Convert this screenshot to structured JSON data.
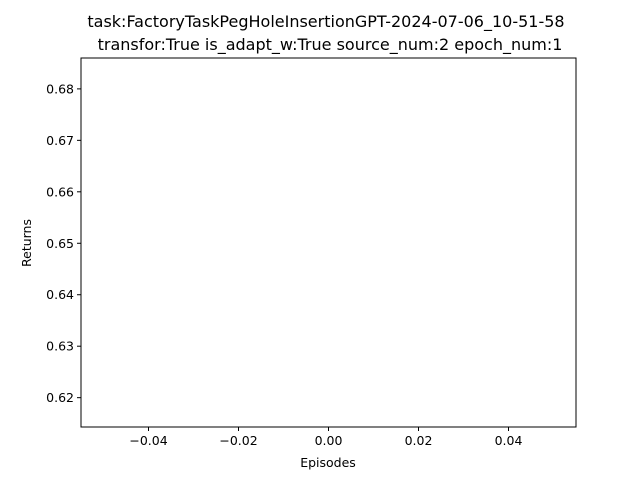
{
  "chart_data": {
    "type": "line",
    "title": "task:FactoryTaskPegHoleInsertionGPT-2024-07-06_10-51-58",
    "subtitle": "transfor:True  is_adapt_w:True   source_num:2   epoch_num:1",
    "xlabel": "Episodes",
    "ylabel": "Returns",
    "xlim": [
      -0.055,
      0.055
    ],
    "ylim": [
      0.6143,
      0.686
    ],
    "xticks": [
      -0.04,
      -0.02,
      0.0,
      0.02,
      0.04
    ],
    "xtick_labels": [
      "−0.04",
      "−0.02",
      "0.00",
      "0.02",
      "0.04"
    ],
    "yticks": [
      0.62,
      0.63,
      0.64,
      0.65,
      0.66,
      0.67,
      0.68
    ],
    "ytick_labels": [
      "0.62",
      "0.63",
      "0.64",
      "0.65",
      "0.66",
      "0.67",
      "0.68"
    ],
    "grid": false,
    "series": [
      {
        "x": [],
        "y": []
      }
    ]
  }
}
